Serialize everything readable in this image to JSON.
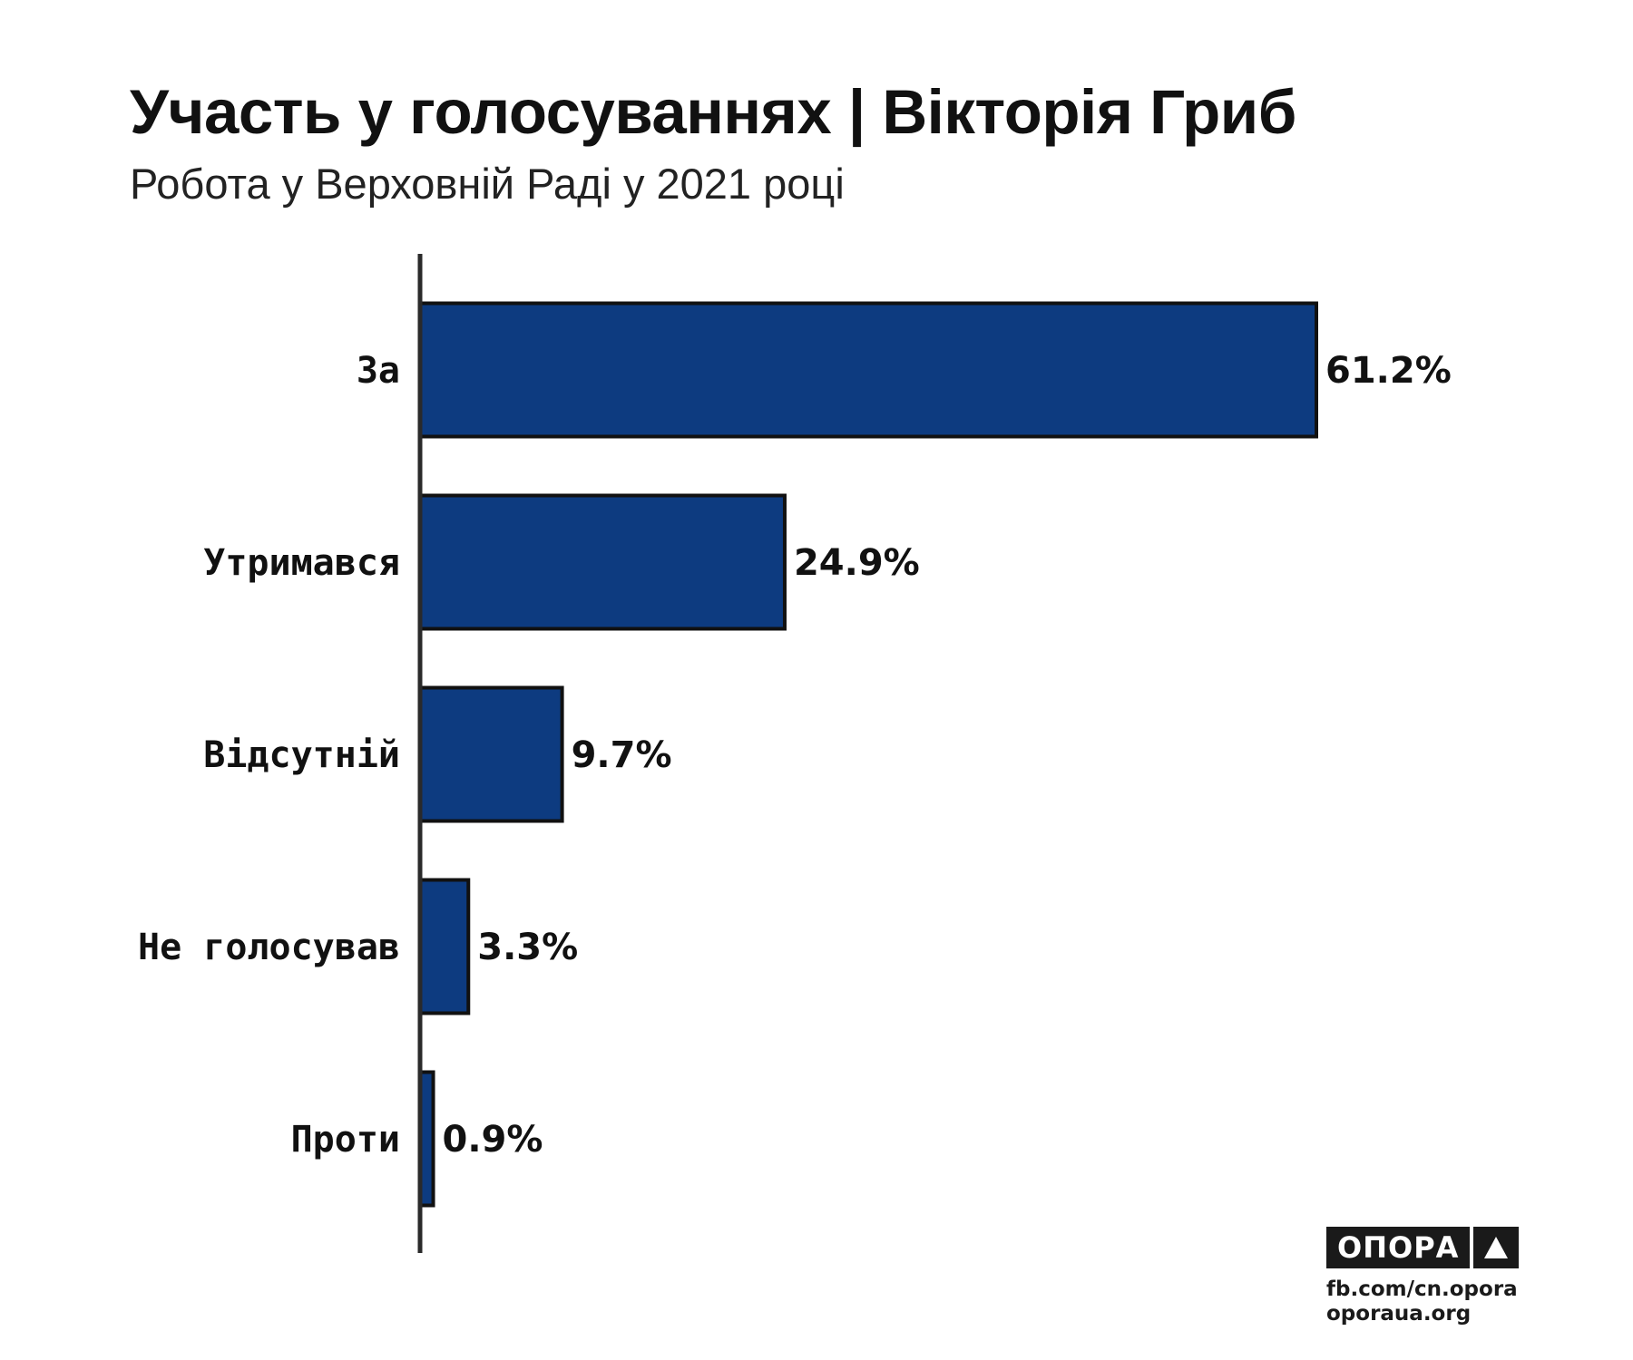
{
  "title": "Участь у голосуваннях | Вікторія Гриб",
  "subtitle": "Робота у Верховній Раді у 2021 році",
  "colors": {
    "bar_fill": "#0d3b80",
    "bar_stroke": "#111111",
    "axis": "#2a2a2a",
    "brand": "#1a1a1a"
  },
  "chart_data": {
    "type": "bar",
    "orientation": "horizontal",
    "categories": [
      "За",
      "Утримався",
      "Відсутній",
      "Не голосував",
      "Проти"
    ],
    "values": [
      61.2,
      24.9,
      9.7,
      3.3,
      0.9
    ],
    "value_labels": [
      "61.2%",
      "24.9%",
      "9.7%",
      "3.3%",
      "0.9%"
    ],
    "unit": "%",
    "xlim": [
      0,
      61.2
    ],
    "grid": false,
    "legend": "none"
  },
  "brand": {
    "logo_text": "ОПОРА",
    "logo_icon": "triangle-icon",
    "link1": "fb.com/cn.opora",
    "link2": "oporaua.org"
  }
}
